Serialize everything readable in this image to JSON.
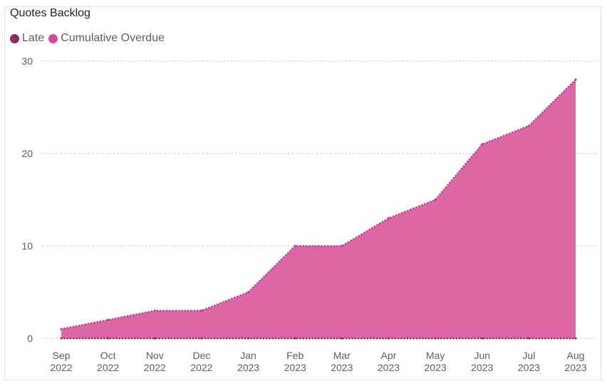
{
  "colors": {
    "cumulative_fill": "#dd67a5",
    "cumulative_line": "#c73e8b",
    "late_line": "#8f2a63",
    "late_swatch": "#8f2a63",
    "cumulative_swatch": "#d9489a",
    "grid": "#c8c6c4"
  },
  "chart_data": {
    "type": "area",
    "title": "Quotes Backlog",
    "legend": [
      "Late",
      "Cumulative Overdue"
    ],
    "legend_position": "top-left",
    "grid": true,
    "ylim": [
      0,
      30
    ],
    "yticks": [
      "0",
      "10",
      "20",
      "30"
    ],
    "xticks": [
      {
        "month": "Sep",
        "year": "2022"
      },
      {
        "month": "Oct",
        "year": "2022"
      },
      {
        "month": "Nov",
        "year": "2022"
      },
      {
        "month": "Dec",
        "year": "2022"
      },
      {
        "month": "Jan",
        "year": "2023"
      },
      {
        "month": "Feb",
        "year": "2023"
      },
      {
        "month": "Mar",
        "year": "2023"
      },
      {
        "month": "Apr",
        "year": "2023"
      },
      {
        "month": "May",
        "year": "2023"
      },
      {
        "month": "Jun",
        "year": "2023"
      },
      {
        "month": "Jul",
        "year": "2023"
      },
      {
        "month": "Aug",
        "year": "2023"
      }
    ],
    "series": [
      {
        "name": "Cumulative Overdue",
        "x": [
          "2022-09-01",
          "2022-10-01",
          "2022-11-01",
          "2022-12-01",
          "2023-01-01",
          "2023-02-01",
          "2023-03-01",
          "2023-04-01",
          "2023-05-01",
          "2023-06-01",
          "2023-07-01",
          "2023-08-01"
        ],
        "values": [
          1,
          2,
          3,
          3,
          5,
          10,
          10,
          13,
          15,
          21,
          23,
          28
        ]
      },
      {
        "name": "Late",
        "x": [
          "2022-09-01",
          "2022-10-01",
          "2022-11-01",
          "2022-12-01",
          "2023-01-01",
          "2023-02-01",
          "2023-03-01",
          "2023-04-01",
          "2023-05-01",
          "2023-06-01",
          "2023-07-01",
          "2023-08-01"
        ],
        "values": [
          0,
          0,
          0,
          0,
          0,
          0,
          0,
          0,
          0,
          0,
          0,
          0
        ]
      }
    ]
  }
}
